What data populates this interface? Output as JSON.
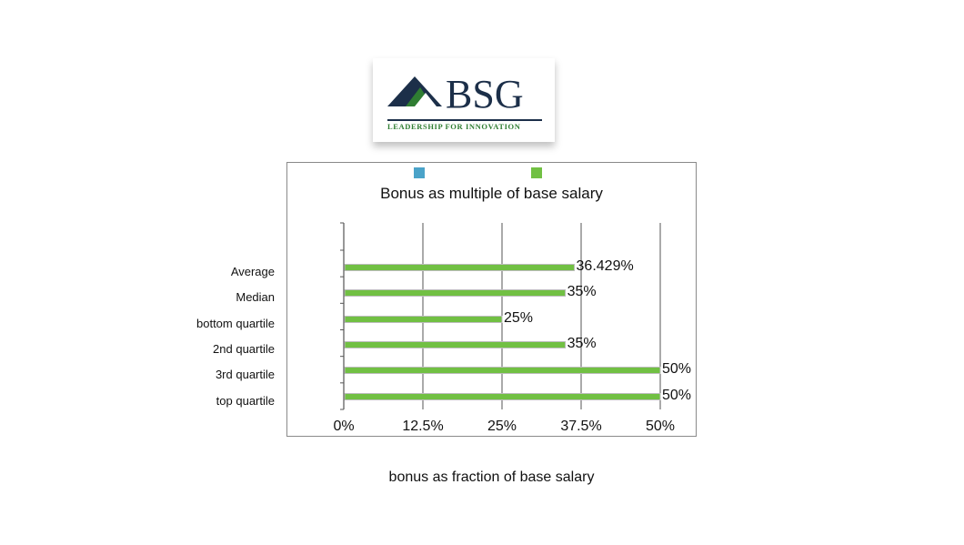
{
  "logo": {
    "name": "BSG",
    "tagline": "LEADERSHIP FOR INNOVATION",
    "colors": {
      "navy": "#1c2f49",
      "green": "#2f7d32"
    }
  },
  "colors": {
    "series_blue": "#4aa3c9",
    "series_green": "#71c043",
    "grid": "#555555"
  },
  "chart_data": {
    "type": "bar",
    "orientation": "horizontal",
    "title": "Bonus as multiple of base salary",
    "xlabel": "bonus as fraction of base salary",
    "ylabel": "",
    "categories": [
      "Average",
      "Median",
      "bottom quartile",
      "2nd quartile",
      "3rd quartile",
      "top quartile"
    ],
    "series": [
      {
        "values": [
          0.36429,
          0.35,
          0.25,
          0.35,
          0.5,
          0.5
        ],
        "color": "#71c043"
      }
    ],
    "data_labels": [
      "36.429%",
      "35%",
      "25%",
      "35%",
      "50%",
      "50%"
    ],
    "legend_colors": [
      "#4aa3c9",
      "#71c043"
    ],
    "legend_position": "top",
    "xlim": [
      0,
      0.5
    ],
    "xticks": [
      0,
      0.125,
      0.25,
      0.375,
      0.5
    ],
    "xtick_labels": [
      "0%",
      "12.5%",
      "25%",
      "37.5%",
      "50%"
    ],
    "grid": "vertical"
  }
}
